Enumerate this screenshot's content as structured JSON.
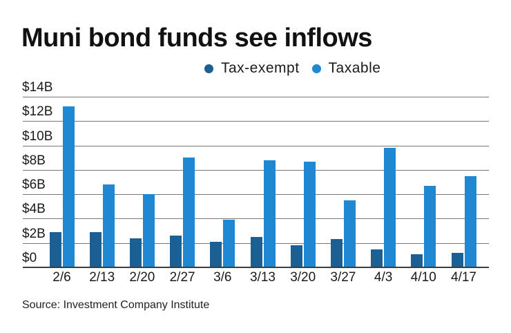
{
  "title": "Muni bond funds see inflows",
  "source": "Source: Investment Company Institute",
  "colors": {
    "tax_exempt": "#1C6093",
    "taxable": "#1E88D2",
    "gridline": "#767676",
    "axis": "#3D3D3D",
    "text": "#1A1A1A"
  },
  "chart_data": {
    "type": "bar",
    "title": "Muni bond funds see inflows",
    "categories": [
      "2/6",
      "2/13",
      "2/20",
      "2/27",
      "3/6",
      "3/13",
      "3/20",
      "3/27",
      "4/3",
      "4/10",
      "4/17"
    ],
    "series": [
      {
        "name": "Tax-exempt",
        "color": "#1C6093",
        "values": [
          2.9,
          2.9,
          2.4,
          2.6,
          2.1,
          2.5,
          1.8,
          2.3,
          1.5,
          1.1,
          1.2
        ]
      },
      {
        "name": "Taxable",
        "color": "#1E88D2",
        "values": [
          13.2,
          6.8,
          6.0,
          9.0,
          3.9,
          8.8,
          8.7,
          5.5,
          9.8,
          6.7,
          7.5
        ]
      }
    ],
    "xlabel": "",
    "ylabel": "",
    "y_ticks": [
      "$14B",
      "$12B",
      "$10B",
      "$8B",
      "$6B",
      "$4B",
      "$2B",
      "$0"
    ],
    "y_tick_values": [
      14,
      12,
      10,
      8,
      6,
      4,
      2,
      0
    ],
    "ylim": [
      0,
      14
    ],
    "grid": true,
    "legend_position": "top",
    "units": "billions USD"
  }
}
